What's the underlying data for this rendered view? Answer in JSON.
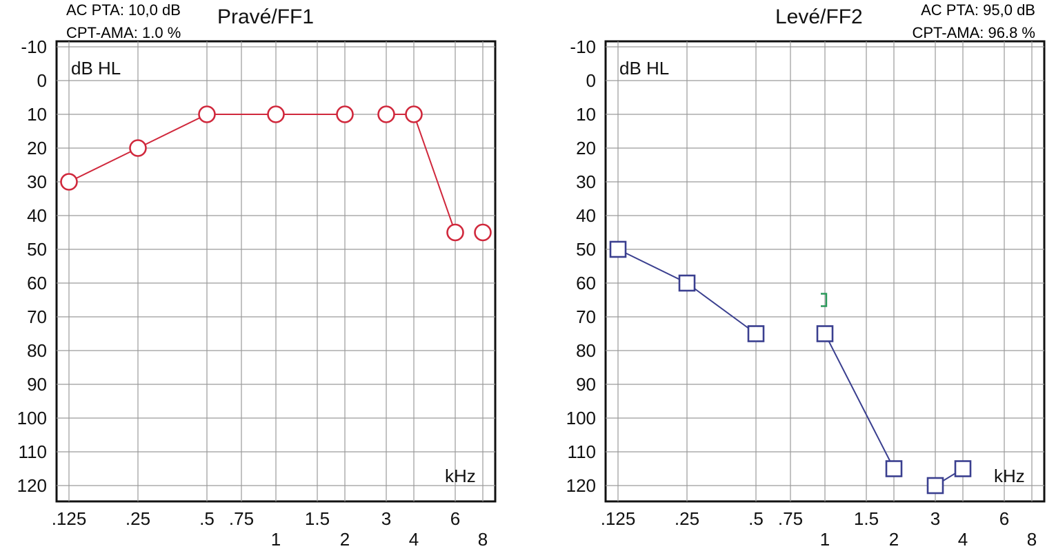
{
  "chart_data": [
    {
      "type": "line",
      "title": "Pravé/FF1",
      "ylabel": "dB HL",
      "xlabel": "kHz",
      "color": "#d0283c",
      "marker": "circle",
      "stats": [
        "AC PTA: 10,0 dB",
        "CPT-AMA: 1.0 %"
      ],
      "ylim": [
        120,
        -10
      ],
      "yticks": [
        "-10",
        "0",
        "10",
        "20",
        "30",
        "40",
        "50",
        "60",
        "70",
        "80",
        "90",
        "100",
        "110",
        "120"
      ],
      "x_positions": [
        ".125",
        ".25",
        ".5",
        ".75",
        "1",
        "1.5",
        "2",
        "3",
        "4",
        "6",
        "8"
      ],
      "x_tick_labels_upper": [
        ".125",
        ".25",
        ".5",
        ".75",
        "1.5",
        "3",
        "6"
      ],
      "x_tick_labels_lower": [
        "1",
        "2",
        "4",
        "8"
      ],
      "grid": true,
      "series": [
        {
          "segments": [
            {
              "x": [
                ".125",
                ".25",
                ".5",
                "1",
                "2"
              ],
              "y": [
                30,
                20,
                10,
                10,
                10
              ]
            },
            {
              "x": [
                "3",
                "4",
                "6"
              ],
              "y": [
                10,
                10,
                45
              ]
            }
          ],
          "points": [
            {
              "x": ".125",
              "y": 30
            },
            {
              "x": ".25",
              "y": 20
            },
            {
              "x": ".5",
              "y": 10
            },
            {
              "x": "1",
              "y": 10
            },
            {
              "x": "2",
              "y": 10
            },
            {
              "x": "3",
              "y": 10
            },
            {
              "x": "4",
              "y": 10
            },
            {
              "x": "6",
              "y": 45
            },
            {
              "x": "8",
              "y": 45
            }
          ]
        }
      ]
    },
    {
      "type": "line",
      "title": "Levé/FF2",
      "ylabel": "dB HL",
      "xlabel": "kHz",
      "color": "#3a3f8f",
      "marker": "square",
      "stats": [
        "AC PTA: 95,0 dB",
        "CPT-AMA: 96.8 %"
      ],
      "ylim": [
        120,
        -10
      ],
      "yticks": [
        "-10",
        "0",
        "10",
        "20",
        "30",
        "40",
        "50",
        "60",
        "70",
        "80",
        "90",
        "100",
        "110",
        "120"
      ],
      "x_positions": [
        ".125",
        ".25",
        ".5",
        ".75",
        "1",
        "1.5",
        "2",
        "3",
        "4",
        "6",
        "8"
      ],
      "x_tick_labels_upper": [
        ".125",
        ".25",
        ".5",
        ".75",
        "1.5",
        "3",
        "6"
      ],
      "x_tick_labels_lower": [
        "1",
        "2",
        "4",
        "8"
      ],
      "grid": true,
      "series": [
        {
          "segments": [
            {
              "x": [
                ".125",
                ".25",
                ".5"
              ],
              "y": [
                50,
                60,
                75
              ]
            },
            {
              "x": [
                "1",
                "2"
              ],
              "y": [
                75,
                115
              ]
            },
            {
              "x": [
                "3",
                "4"
              ],
              "y": [
                120,
                115
              ]
            }
          ],
          "points": [
            {
              "x": ".125",
              "y": 50
            },
            {
              "x": ".25",
              "y": 60
            },
            {
              "x": ".5",
              "y": 75
            },
            {
              "x": "1",
              "y": 75
            },
            {
              "x": "2",
              "y": 115
            },
            {
              "x": "3",
              "y": 120
            },
            {
              "x": "4",
              "y": 115
            }
          ],
          "bone_marker": {
            "x": "1",
            "y": 65,
            "color": "#2a9a5a"
          }
        }
      ]
    }
  ]
}
